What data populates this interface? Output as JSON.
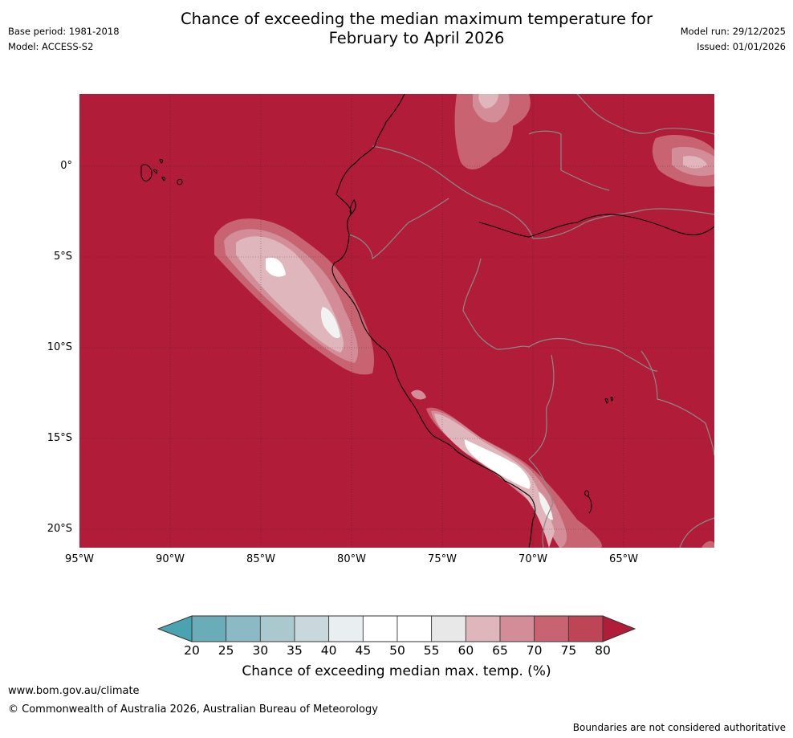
{
  "header": {
    "title_line1": "Chance of exceeding the median maximum temperature for",
    "title_line2": "February to April 2026",
    "base_period": "Base period: 1981-2018",
    "model": "Model: ACCESS-S2",
    "model_run": "Model run: 29/12/2025",
    "issued": "Issued: 01/01/2026"
  },
  "map": {
    "background_color": "#b11c38",
    "lat_labels": [
      "0°",
      "5°S",
      "10°S",
      "15°S",
      "20°S"
    ],
    "lon_labels": [
      "95°W",
      "90°W",
      "85°W",
      "80°W",
      "75°W",
      "70°W",
      "65°W"
    ]
  },
  "colorbar": {
    "title": "Chance of exceeding median max. temp. (%)",
    "tick_labels": [
      "20",
      "25",
      "30",
      "35",
      "40",
      "45",
      "50",
      "55",
      "60",
      "65",
      "70",
      "75",
      "80"
    ],
    "colors": {
      "low_arrow": "#4aa3b0",
      "bins": [
        "#6aadb9",
        "#8cbac4",
        "#aac9cf",
        "#c9d8dc",
        "#e9eef0",
        "#ffffff",
        "#ffffff",
        "#e8e8e8",
        "#e0b6bd",
        "#d38d98",
        "#c86371",
        "#bd4556"
      ],
      "high_arrow": "#b11c38"
    }
  },
  "footer": {
    "website": "www.bom.gov.au/climate",
    "copyright": "© Commonwealth of Australia 2026, Australian Bureau of Meteorology",
    "boundaries_note": "Boundaries are not considered authoritative"
  }
}
